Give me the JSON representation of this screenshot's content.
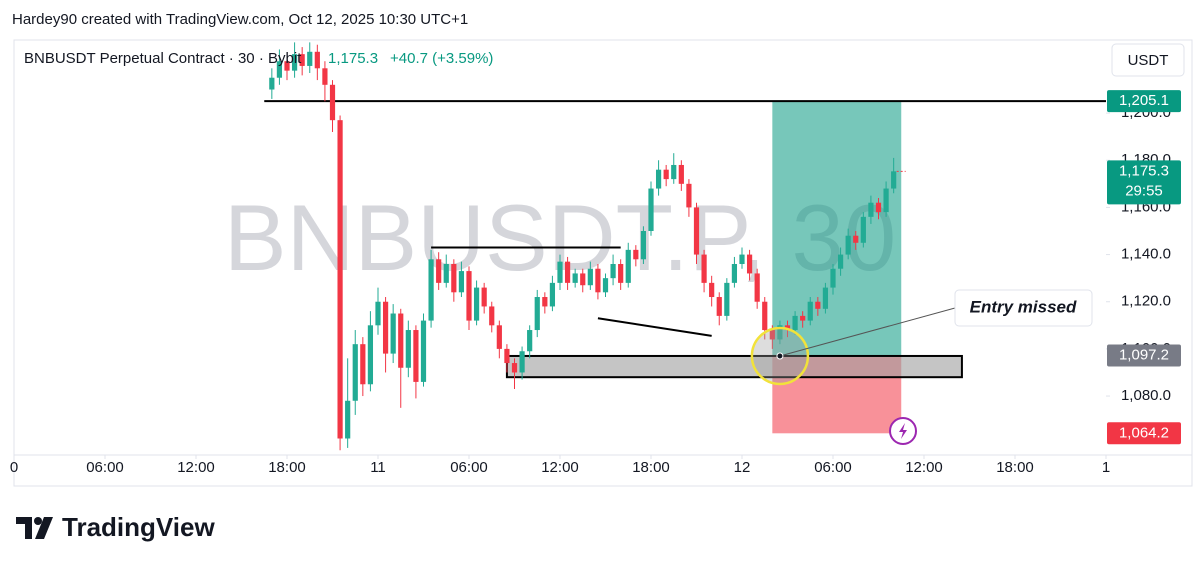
{
  "header": {
    "credit": "Hardey90 created with TradingView.com, Oct 12, 2025 10:30 UTC+1",
    "currency": "USDT",
    "watermark": "BNBUSDT.P, 30",
    "brand": "TradingView"
  },
  "chart_data": {
    "type": "candlestick",
    "title": "BNBUSDT Perpetual Contract · 30 · Bybit",
    "change": "+40.7 (+3.59%)",
    "countdown": "29:55",
    "up_color": "#22ab94",
    "down_color": "#f23645",
    "last_price": {
      "value": 1175.3,
      "label": "1,175.3"
    },
    "xlim": [
      0,
      72
    ],
    "ylim": [
      1055,
      1231
    ],
    "xticks": [
      {
        "value": 0,
        "label": "0"
      },
      {
        "value": 6,
        "label": "06:00"
      },
      {
        "value": 12,
        "label": "12:00"
      },
      {
        "value": 18,
        "label": "18:00"
      },
      {
        "value": 24,
        "label": "11"
      },
      {
        "value": 30,
        "label": "06:00"
      },
      {
        "value": 36,
        "label": "12:00"
      },
      {
        "value": 42,
        "label": "18:00"
      },
      {
        "value": 48,
        "label": "12"
      },
      {
        "value": 54,
        "label": "06:00"
      },
      {
        "value": 60,
        "label": "12:00"
      },
      {
        "value": 66,
        "label": "18:00"
      },
      {
        "value": 72,
        "label": "1"
      }
    ],
    "yticks": [
      {
        "value": 1080,
        "label": "1,080.0"
      },
      {
        "value": 1100,
        "label": "1,100.0"
      },
      {
        "value": 1120,
        "label": "1,120.0"
      },
      {
        "value": 1140,
        "label": "1,140.0"
      },
      {
        "value": 1160,
        "label": "1,160.0"
      },
      {
        "value": 1180,
        "label": "1,180.0"
      },
      {
        "value": 1200,
        "label": "1,200.0"
      }
    ],
    "x": [
      17,
      17.5,
      18,
      18.5,
      19,
      19.5,
      20,
      20.5,
      21,
      21.5,
      22,
      22.5,
      23,
      23.5,
      24,
      24.5,
      25,
      25.5,
      26,
      26.5,
      27,
      27.5,
      28,
      28.5,
      29,
      29.5,
      30,
      30.5,
      31,
      31.5,
      32,
      32.5,
      33,
      33.5,
      34,
      34.5,
      35,
      35.5,
      36,
      36.5,
      37,
      37.5,
      38,
      38.5,
      39,
      39.5,
      40,
      40.5,
      41,
      41.5,
      42,
      42.5,
      43,
      43.5,
      44,
      44.5,
      45,
      45.5,
      46,
      46.5,
      47,
      47.5,
      48,
      48.5,
      49,
      49.5,
      50,
      50.5,
      51,
      51.5,
      52,
      52.5,
      53,
      53.5,
      54,
      54.5,
      55,
      55.5,
      56,
      56.5,
      57,
      57.5,
      58
    ],
    "open": [
      1210,
      1215,
      1222,
      1218,
      1225,
      1220,
      1226,
      1219,
      1212,
      1197,
      1062,
      1078,
      1102,
      1085,
      1110,
      1120,
      1098,
      1115,
      1092,
      1108,
      1086,
      1112,
      1138,
      1128,
      1136,
      1124,
      1133,
      1112,
      1126,
      1118,
      1110,
      1100,
      1094,
      1090,
      1099,
      1108,
      1122,
      1118,
      1128,
      1137,
      1128,
      1132,
      1127,
      1134,
      1124,
      1130,
      1136,
      1128,
      1142,
      1138,
      1150,
      1168,
      1176,
      1172,
      1178,
      1170,
      1160,
      1140,
      1128,
      1122,
      1114,
      1128,
      1136,
      1140,
      1132,
      1120,
      1108,
      1104,
      1110,
      1108,
      1114,
      1112,
      1120,
      1117,
      1126,
      1134,
      1140,
      1148,
      1145,
      1156,
      1162,
      1158,
      1168
    ],
    "high": [
      1219,
      1227,
      1225,
      1230,
      1228,
      1230,
      1229,
      1222,
      1214,
      1199,
      1096,
      1108,
      1105,
      1116,
      1126,
      1122,
      1119,
      1117,
      1112,
      1110,
      1115,
      1142,
      1141,
      1140,
      1138,
      1137,
      1135,
      1129,
      1128,
      1120,
      1112,
      1102,
      1096,
      1101,
      1110,
      1125,
      1124,
      1131,
      1140,
      1139,
      1134,
      1134,
      1137,
      1136,
      1132,
      1140,
      1138,
      1145,
      1144,
      1152,
      1171,
      1180,
      1178,
      1183,
      1180,
      1172,
      1162,
      1142,
      1131,
      1124,
      1130,
      1139,
      1143,
      1142,
      1134,
      1122,
      1110,
      1112,
      1112,
      1116,
      1116,
      1122,
      1122,
      1128,
      1136,
      1143,
      1151,
      1150,
      1158,
      1165,
      1164,
      1171,
      1181
    ],
    "low": [
      1206,
      1212,
      1214,
      1215,
      1216,
      1217,
      1214,
      1205,
      1192,
      1057,
      1058,
      1072,
      1080,
      1082,
      1106,
      1090,
      1094,
      1075,
      1088,
      1079,
      1084,
      1109,
      1125,
      1126,
      1120,
      1122,
      1108,
      1110,
      1115,
      1107,
      1096,
      1090,
      1083,
      1087,
      1096,
      1105,
      1115,
      1116,
      1125,
      1125,
      1126,
      1124,
      1125,
      1121,
      1122,
      1127,
      1125,
      1126,
      1135,
      1136,
      1148,
      1165,
      1169,
      1170,
      1167,
      1156,
      1136,
      1124,
      1118,
      1110,
      1112,
      1126,
      1134,
      1129,
      1117,
      1104,
      1100,
      1102,
      1105,
      1106,
      1109,
      1110,
      1114,
      1115,
      1123,
      1131,
      1138,
      1142,
      1143,
      1153,
      1155,
      1156,
      1166
    ],
    "close": [
      1215,
      1222,
      1218,
      1225,
      1220,
      1226,
      1219,
      1212,
      1197,
      1062,
      1078,
      1102,
      1085,
      1110,
      1120,
      1098,
      1115,
      1092,
      1108,
      1086,
      1112,
      1138,
      1128,
      1136,
      1124,
      1133,
      1112,
      1126,
      1118,
      1110,
      1100,
      1094,
      1090,
      1099,
      1108,
      1122,
      1118,
      1128,
      1137,
      1128,
      1132,
      1127,
      1134,
      1124,
      1130,
      1136,
      1128,
      1142,
      1138,
      1150,
      1168,
      1176,
      1172,
      1178,
      1170,
      1160,
      1140,
      1128,
      1122,
      1114,
      1128,
      1136,
      1140,
      1132,
      1120,
      1108,
      1104,
      1110,
      1108,
      1114,
      1112,
      1120,
      1117,
      1126,
      1134,
      1140,
      1148,
      1145,
      1156,
      1162,
      1158,
      1168,
      1175.3
    ],
    "position": {
      "x": [
        50,
        58.5
      ],
      "target": {
        "value": 1205.1,
        "label": "1,205.1"
      },
      "entry": {
        "value": 1097.2,
        "label": "1,097.2"
      },
      "stop": {
        "value": 1064.2,
        "label": "1,064.2"
      }
    },
    "drawings": {
      "lines": [
        {
          "x": [
            16.5,
            72
          ],
          "y": [
            1205.1,
            1205.1
          ]
        },
        {
          "x": [
            27.5,
            40
          ],
          "y": [
            1143,
            1143
          ]
        },
        {
          "x": [
            38.5,
            46
          ],
          "y": [
            1113,
            1105.5
          ]
        }
      ],
      "zone": {
        "x": [
          32.5,
          62.5
        ],
        "y": [
          1088,
          1097
        ]
      },
      "annotation": {
        "text": "Entry missed",
        "x": 50.5,
        "y": 1097
      }
    }
  }
}
